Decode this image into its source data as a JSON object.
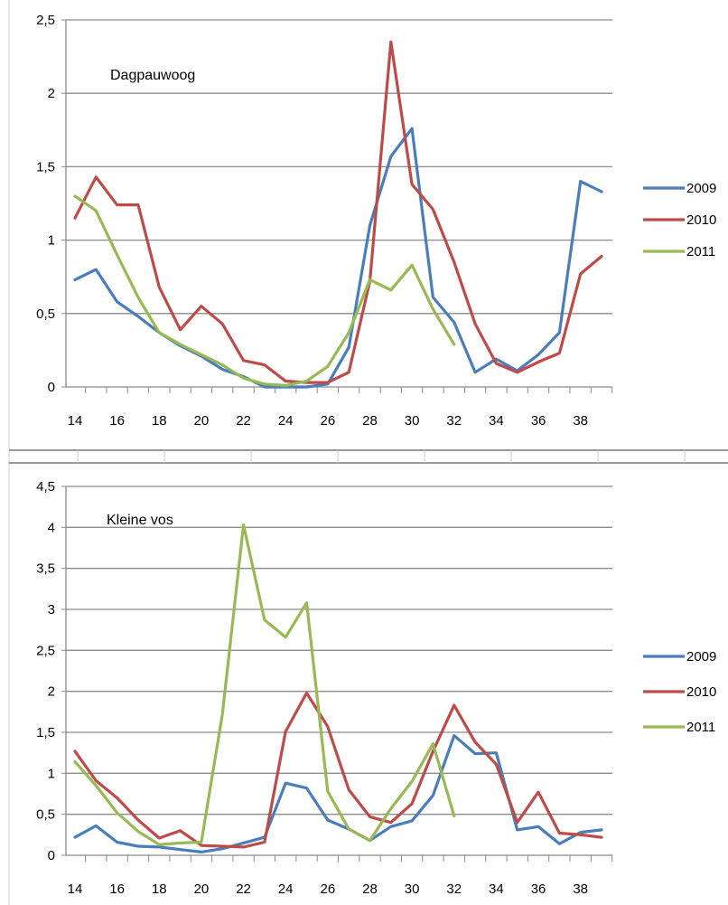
{
  "chart_data": [
    {
      "type": "line",
      "title": "Dagpauwoog",
      "x": [
        14,
        15,
        16,
        17,
        18,
        19,
        20,
        21,
        22,
        23,
        24,
        25,
        26,
        27,
        28,
        29,
        30,
        31,
        32,
        33,
        34,
        35,
        36,
        37,
        38,
        39
      ],
      "x_tick_labels": [
        "14",
        "16",
        "18",
        "20",
        "22",
        "24",
        "26",
        "28",
        "30",
        "32",
        "34",
        "36",
        "38"
      ],
      "ylim": [
        0,
        2.5
      ],
      "y_tick_labels": [
        "0",
        "0,5",
        "1",
        "1,5",
        "2",
        "2,5"
      ],
      "grid": true,
      "legend": "right",
      "series": [
        {
          "name": "2009",
          "color": "#4a7ebb",
          "values": [
            0.73,
            0.8,
            0.58,
            0.48,
            0.37,
            0.28,
            0.21,
            0.12,
            0.07,
            0.0,
            0.0,
            0.0,
            0.02,
            0.27,
            1.1,
            1.57,
            1.76,
            0.61,
            0.44,
            0.1,
            0.19,
            0.11,
            0.22,
            0.37,
            1.4,
            1.33
          ]
        },
        {
          "name": "2010",
          "color": "#be4b48",
          "values": [
            1.15,
            1.43,
            1.24,
            1.24,
            0.68,
            0.39,
            0.55,
            0.43,
            0.18,
            0.15,
            0.04,
            0.03,
            0.03,
            0.1,
            0.72,
            2.35,
            1.38,
            1.21,
            0.85,
            0.43,
            0.16,
            0.1,
            0.17,
            0.23,
            0.77,
            0.89
          ]
        },
        {
          "name": "2011",
          "color": "#98b954",
          "values": [
            1.3,
            1.2,
            0.9,
            0.61,
            0.37,
            0.29,
            0.22,
            0.15,
            0.06,
            0.02,
            0.01,
            0.04,
            0.14,
            0.37,
            0.73,
            0.66,
            0.83,
            0.53,
            0.29,
            null,
            null,
            null,
            null,
            null,
            null,
            null
          ]
        }
      ]
    },
    {
      "type": "line",
      "title": "Kleine vos",
      "x": [
        14,
        15,
        16,
        17,
        18,
        19,
        20,
        21,
        22,
        23,
        24,
        25,
        26,
        27,
        28,
        29,
        30,
        31,
        32,
        33,
        34,
        35,
        36,
        37,
        38,
        39
      ],
      "x_tick_labels": [
        "14",
        "16",
        "18",
        "20",
        "22",
        "24",
        "26",
        "28",
        "30",
        "32",
        "34",
        "36",
        "38"
      ],
      "ylim": [
        0,
        4.5
      ],
      "y_tick_labels": [
        "0",
        "0,5",
        "1",
        "1,5",
        "2",
        "2,5",
        "3",
        "3,5",
        "4",
        "4,5"
      ],
      "grid": true,
      "legend": "right",
      "series": [
        {
          "name": "2009",
          "color": "#4a7ebb",
          "values": [
            0.22,
            0.36,
            0.16,
            0.11,
            0.1,
            0.07,
            0.04,
            0.08,
            0.15,
            0.22,
            0.88,
            0.82,
            0.43,
            0.32,
            0.18,
            0.35,
            0.42,
            0.73,
            1.46,
            1.24,
            1.25,
            0.31,
            0.35,
            0.14,
            0.28,
            0.31
          ]
        },
        {
          "name": "2010",
          "color": "#be4b48",
          "values": [
            1.27,
            0.91,
            0.7,
            0.43,
            0.21,
            0.3,
            0.12,
            0.11,
            0.1,
            0.16,
            1.51,
            1.98,
            1.57,
            0.8,
            0.47,
            0.4,
            0.63,
            1.27,
            1.83,
            1.38,
            1.11,
            0.4,
            0.77,
            0.27,
            0.25,
            0.22
          ]
        },
        {
          "name": "2011",
          "color": "#98b954",
          "values": [
            1.14,
            0.85,
            0.52,
            0.29,
            0.13,
            0.15,
            0.16,
            1.72,
            4.03,
            2.87,
            2.66,
            3.08,
            0.78,
            0.32,
            0.18,
            0.57,
            0.9,
            1.36,
            0.48,
            null,
            null,
            null,
            null,
            null,
            null,
            null
          ]
        }
      ]
    }
  ]
}
